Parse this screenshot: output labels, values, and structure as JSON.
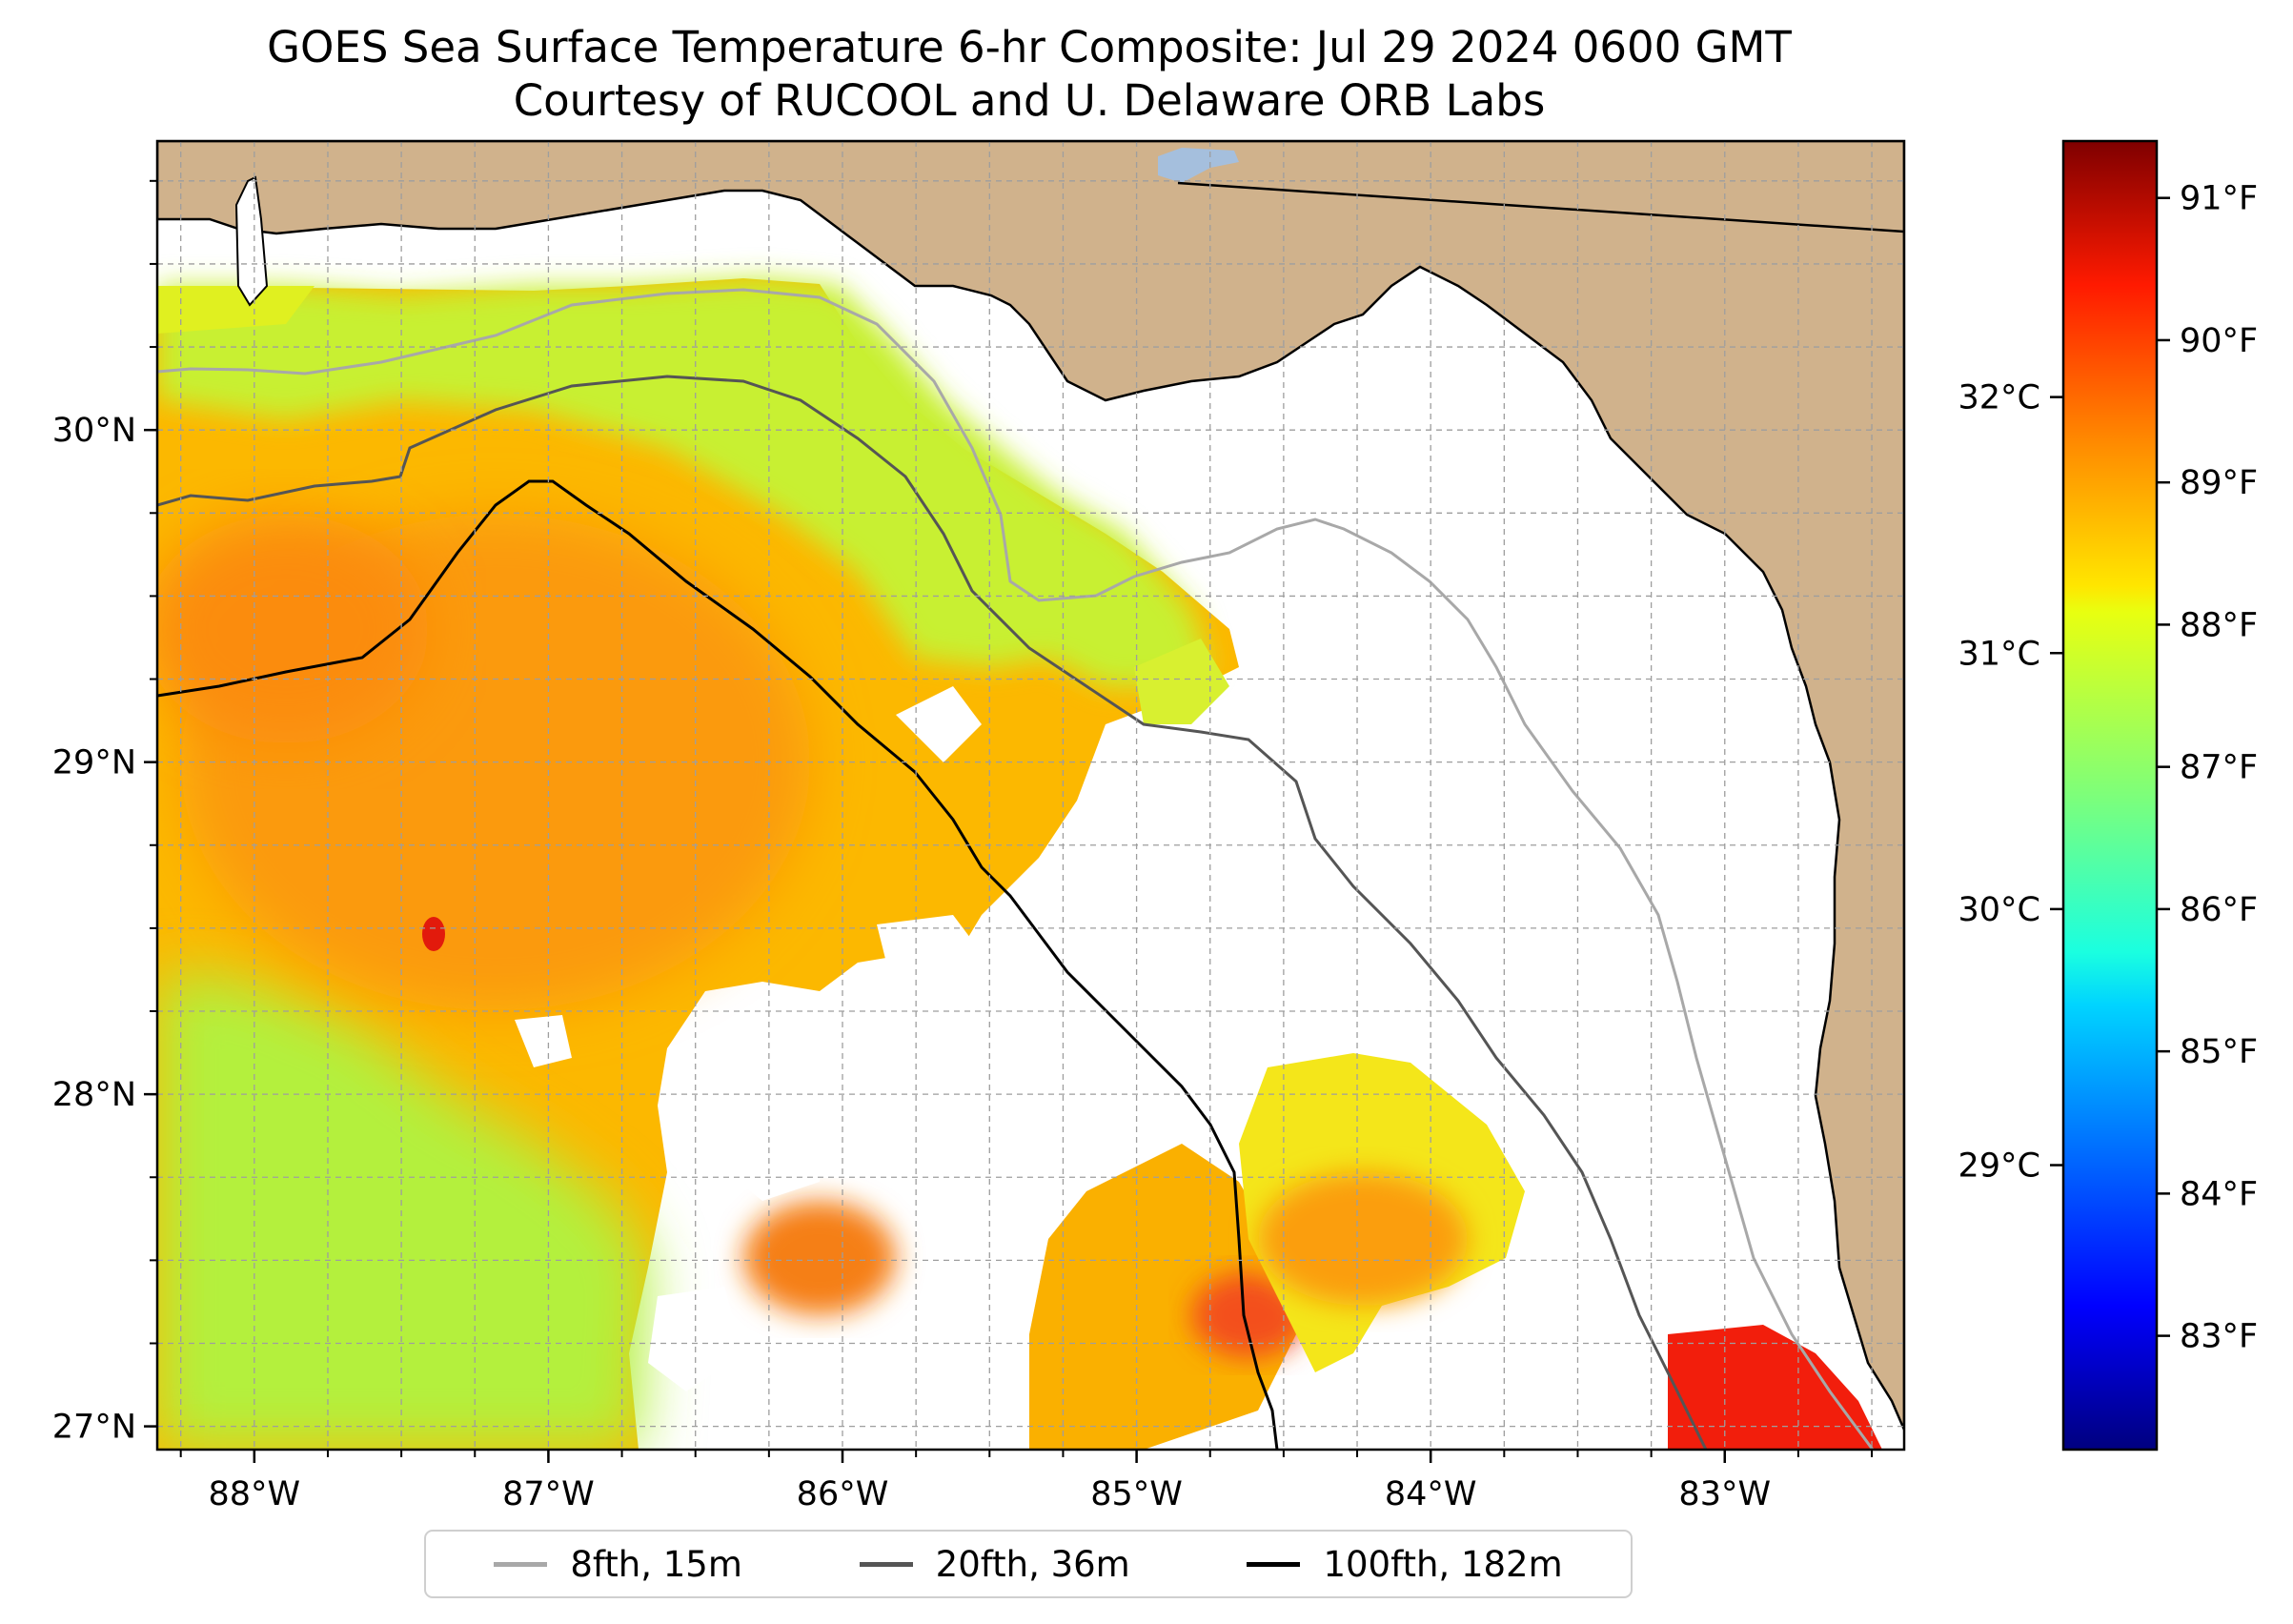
{
  "title": {
    "line1": "GOES Sea Surface Temperature 6-hr Composite: Jul 29 2024 0600 GMT",
    "line2": "Courtesy of RUCOOL and U. Delaware ORB Labs"
  },
  "map": {
    "lon_range": [
      -88.33,
      -82.39
    ],
    "lat_range": [
      26.93,
      30.87
    ],
    "lon_ticks": [
      {
        "value": -88,
        "label": "88°W"
      },
      {
        "value": -87,
        "label": "87°W"
      },
      {
        "value": -86,
        "label": "86°W"
      },
      {
        "value": -85,
        "label": "85°W"
      },
      {
        "value": -84,
        "label": "84°W"
      },
      {
        "value": -83,
        "label": "83°W"
      }
    ],
    "lat_ticks": [
      {
        "value": 27,
        "label": "27°N"
      },
      {
        "value": 28,
        "label": "28°N"
      },
      {
        "value": 29,
        "label": "29°N"
      },
      {
        "value": 30,
        "label": "30°N"
      }
    ],
    "grid": true,
    "colors": {
      "land": "#d0b28c",
      "no_data": "#ffffff",
      "lake": "#a5bfdd",
      "coastline": "#000000",
      "contour_8fth": "#a8a8a8",
      "contour_20fth": "#555555",
      "contour_100fth": "#000000"
    }
  },
  "colorbar": {
    "cmap": "jet",
    "f_ticks": [
      "91°F",
      "90°F",
      "89°F",
      "88°F",
      "87°F",
      "86°F",
      "85°F",
      "84°F",
      "83°F"
    ],
    "f_values": [
      91,
      90,
      89,
      88,
      87,
      86,
      85,
      84,
      83
    ],
    "c_ticks": [
      "32°C",
      "31°C",
      "30°C",
      "29°C"
    ],
    "c_values": [
      32,
      31,
      30,
      29
    ],
    "range_f": [
      82.2,
      91.4
    ]
  },
  "legend": {
    "items": [
      {
        "label": "8fth, 15m",
        "color": "#a8a8a8"
      },
      {
        "label": "20fth, 36m",
        "color": "#555555"
      },
      {
        "label": "100fth, 182m",
        "color": "#000000"
      }
    ]
  }
}
